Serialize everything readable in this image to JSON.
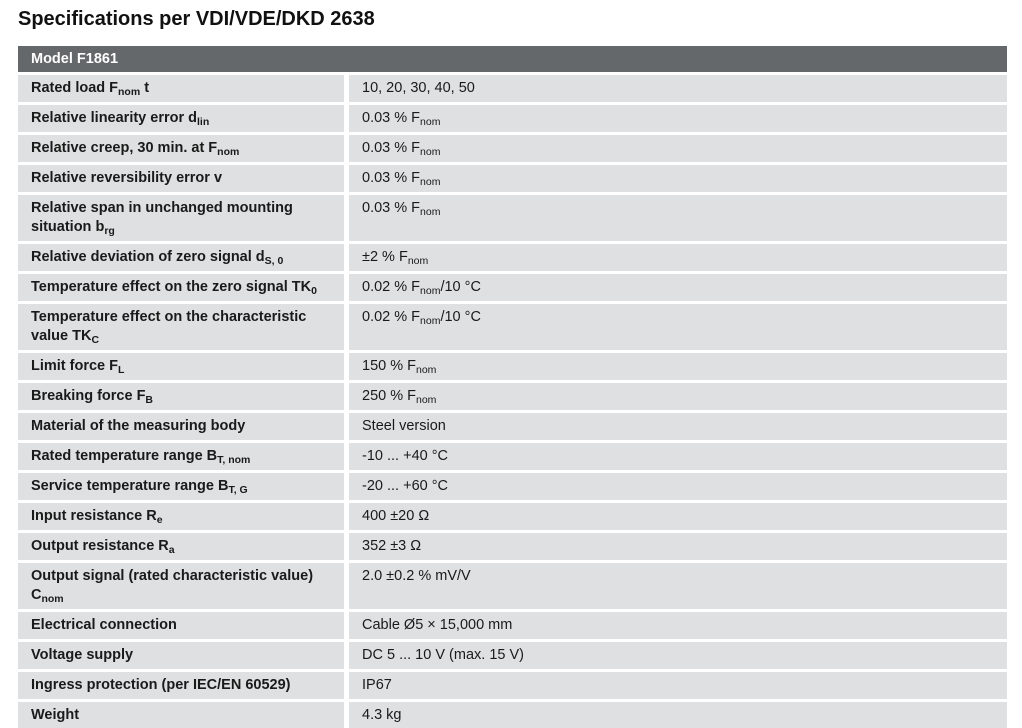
{
  "page_title": "Specifications per VDI/VDE/DKD 2638",
  "colors": {
    "header_bg": "#65686B",
    "header_text": "#FFFFFF",
    "row_bg": "#DEE0E1",
    "text_color": "#1A1A1A",
    "page_bg": "#FFFFFF"
  },
  "table": {
    "header": "Model F1861",
    "rows": [
      {
        "label": [
          {
            "t": "Rated load F"
          },
          {
            "s": "nom"
          },
          {
            "t": " t"
          }
        ],
        "value": [
          {
            "t": "10, 20, 30, 40, 50"
          }
        ]
      },
      {
        "label": [
          {
            "t": "Relative linearity error d"
          },
          {
            "s": "lin"
          }
        ],
        "value": [
          {
            "t": "0.03 % F"
          },
          {
            "s": "nom"
          }
        ]
      },
      {
        "label": [
          {
            "t": "Relative creep, 30 min. at F"
          },
          {
            "s": "nom"
          }
        ],
        "value": [
          {
            "t": "0.03 % F"
          },
          {
            "s": "nom"
          }
        ]
      },
      {
        "label": [
          {
            "t": "Relative reversibility error v"
          }
        ],
        "value": [
          {
            "t": "0.03 % F"
          },
          {
            "s": "nom"
          }
        ]
      },
      {
        "label": [
          {
            "t": "Relative span in unchanged mounting situation b"
          },
          {
            "s": "rg"
          }
        ],
        "value": [
          {
            "t": "0.03 % F"
          },
          {
            "s": "nom"
          }
        ]
      },
      {
        "label": [
          {
            "t": "Relative deviation of zero signal d"
          },
          {
            "s": "S, 0"
          }
        ],
        "value": [
          {
            "t": "±2 % F"
          },
          {
            "s": "nom"
          }
        ]
      },
      {
        "label": [
          {
            "t": "Temperature effect on the zero signal TK"
          },
          {
            "s": "0"
          }
        ],
        "value": [
          {
            "t": "0.02 % F"
          },
          {
            "s": "nom"
          },
          {
            "t": "/10 °C"
          }
        ]
      },
      {
        "label": [
          {
            "t": "Temperature effect on the characteristic value TK"
          },
          {
            "s": "C"
          }
        ],
        "value": [
          {
            "t": "0.02 % F"
          },
          {
            "s": "nom"
          },
          {
            "t": "/10 °C"
          }
        ]
      },
      {
        "label": [
          {
            "t": "Limit force F"
          },
          {
            "s": "L"
          }
        ],
        "value": [
          {
            "t": "150 % F"
          },
          {
            "s": "nom"
          }
        ]
      },
      {
        "label": [
          {
            "t": "Breaking force F"
          },
          {
            "s": "B"
          }
        ],
        "value": [
          {
            "t": "250 % F"
          },
          {
            "s": "nom"
          }
        ]
      },
      {
        "label": [
          {
            "t": "Material of the measuring body"
          }
        ],
        "value": [
          {
            "t": "Steel version"
          }
        ]
      },
      {
        "label": [
          {
            "t": "Rated temperature range B"
          },
          {
            "s": "T, nom"
          }
        ],
        "value": [
          {
            "t": "-10 ... +40 °C"
          }
        ]
      },
      {
        "label": [
          {
            "t": "Service temperature range B"
          },
          {
            "s": "T, G"
          }
        ],
        "value": [
          {
            "t": "-20 ... +60 °C"
          }
        ]
      },
      {
        "label": [
          {
            "t": "Input resistance R"
          },
          {
            "s": "e"
          }
        ],
        "value": [
          {
            "t": "400 ±20 Ω"
          }
        ]
      },
      {
        "label": [
          {
            "t": "Output resistance R"
          },
          {
            "s": "a"
          }
        ],
        "value": [
          {
            "t": "352 ±3 Ω"
          }
        ]
      },
      {
        "label": [
          {
            "t": "Output signal (rated characteristic value) C"
          },
          {
            "s": "nom"
          }
        ],
        "value": [
          {
            "t": "2.0 ±0.2 % mV/V"
          }
        ]
      },
      {
        "label": [
          {
            "t": "Electrical connection"
          }
        ],
        "value": [
          {
            "t": "Cable Ø5 × 15,000 mm"
          }
        ]
      },
      {
        "label": [
          {
            "t": "Voltage supply"
          }
        ],
        "value": [
          {
            "t": "DC 5 ... 10 V (max. 15 V)"
          }
        ]
      },
      {
        "label": [
          {
            "t": "Ingress protection (per IEC/EN 60529)"
          }
        ],
        "value": [
          {
            "t": "IP67"
          }
        ]
      },
      {
        "label": [
          {
            "t": "Weight"
          }
        ],
        "value": [
          {
            "t": "4.3 kg"
          }
        ]
      }
    ]
  }
}
